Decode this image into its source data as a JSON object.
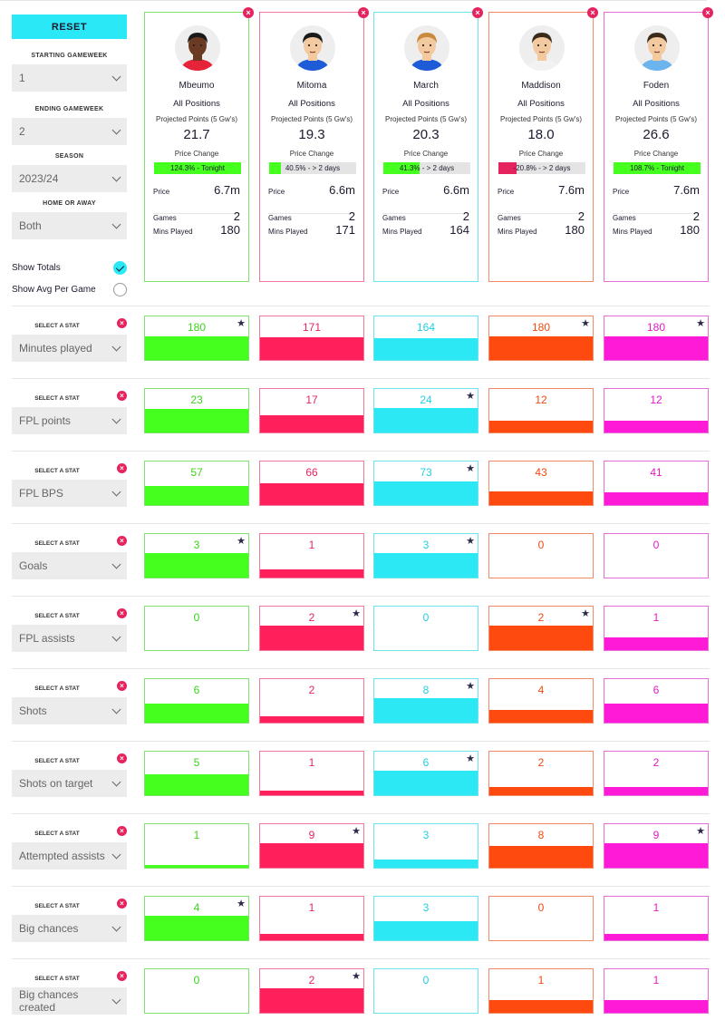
{
  "sidebar": {
    "reset_label": "RESET",
    "starting_label": "STARTING GAMEWEEK",
    "starting_value": "1",
    "ending_label": "ENDING GAMEWEEK",
    "ending_value": "2",
    "season_label": "SEASON",
    "season_value": "2023/24",
    "home_away_label": "HOME OR AWAY",
    "home_away_value": "Both",
    "show_totals": "Show Totals",
    "show_totals_on": true,
    "show_avg": "Show Avg Per Game",
    "show_avg_on": false
  },
  "labels": {
    "projected": "Projected Points (5 Gw's)",
    "price_change": "Price Change",
    "price": "Price",
    "games": "Games",
    "mins": "Mins Played",
    "select_stat": "SELECT A STAT",
    "close": "×",
    "star": "★"
  },
  "colors": [
    "#45ff1e",
    "#ff1f5a",
    "#2ce8f5",
    "#ff4a0f",
    "#ff1ad8"
  ],
  "border_colors": [
    "#7de36a",
    "#f07a9b",
    "#6de3ec",
    "#f58b66",
    "#e86fd6"
  ],
  "text_colors": [
    "#3ad41a",
    "#e5245f",
    "#22cfe0",
    "#ee4a10",
    "#e21ac8"
  ],
  "players": [
    {
      "name": "Mbeumo",
      "position": "All Positions",
      "projected": "21.7",
      "price_change_text": "124.3% - Tonight",
      "price_change_pct": 100,
      "price_bar_color": "#45ff1e",
      "price": "6.7m",
      "games": "2",
      "mins": "180",
      "skin": "#6b3a22",
      "hair": "#1a1a1a",
      "shirt": "#e5243a"
    },
    {
      "name": "Mitoma",
      "position": "All Positions",
      "projected": "19.3",
      "price_change_text": "40.5% - > 2 days",
      "price_change_pct": 14,
      "price_bar_color": "#45ff1e",
      "price": "6.6m",
      "games": "2",
      "mins": "171",
      "skin": "#f3c9a0",
      "hair": "#1a1a1a",
      "shirt": "#1e5bd6"
    },
    {
      "name": "March",
      "position": "All Positions",
      "projected": "20.3",
      "price_change_text": "41.3% - > 2 days",
      "price_change_pct": 42,
      "price_bar_color": "#45ff1e",
      "price": "6.6m",
      "games": "2",
      "mins": "164",
      "skin": "#f3c9a0",
      "hair": "#c98a40",
      "shirt": "#1e5bd6"
    },
    {
      "name": "Maddison",
      "position": "All Positions",
      "projected": "18.0",
      "price_change_text": "-20.8% - > 2 days",
      "price_change_pct": 21,
      "price_bar_color": "#e5245f",
      "price": "7.6m",
      "games": "2",
      "mins": "180",
      "skin": "#f3c9a0",
      "hair": "#3a2a1a",
      "shirt": "#f2f2f2"
    },
    {
      "name": "Foden",
      "position": "All Positions",
      "projected": "26.6",
      "price_change_text": "108.7% - Tonight",
      "price_change_pct": 100,
      "price_bar_color": "#45ff1e",
      "price": "7.6m",
      "games": "2",
      "mins": "180",
      "skin": "#f3c9a0",
      "hair": "#3a2a1a",
      "shirt": "#6cb4ee"
    }
  ],
  "stats": [
    {
      "name": "Minutes played",
      "values": [
        "180",
        "171",
        "164",
        "180",
        "180"
      ],
      "fills": [
        0.55,
        0.52,
        0.5,
        0.55,
        0.55
      ],
      "stars": [
        true,
        false,
        false,
        true,
        true
      ]
    },
    {
      "name": "FPL points",
      "values": [
        "23",
        "17",
        "24",
        "12",
        "12"
      ],
      "fills": [
        0.55,
        0.4,
        0.57,
        0.27,
        0.27
      ],
      "stars": [
        false,
        false,
        true,
        false,
        false
      ]
    },
    {
      "name": "FPL BPS",
      "values": [
        "57",
        "66",
        "73",
        "43",
        "41"
      ],
      "fills": [
        0.43,
        0.5,
        0.55,
        0.32,
        0.3
      ],
      "stars": [
        false,
        false,
        true,
        false,
        false
      ]
    },
    {
      "name": "Goals",
      "values": [
        "3",
        "1",
        "3",
        "0",
        "0"
      ],
      "fills": [
        0.57,
        0.19,
        0.57,
        0,
        0
      ],
      "stars": [
        true,
        false,
        true,
        false,
        false
      ]
    },
    {
      "name": "FPL assists",
      "values": [
        "0",
        "2",
        "0",
        "2",
        "1"
      ],
      "fills": [
        0,
        0.57,
        0,
        0.57,
        0.29
      ],
      "stars": [
        false,
        true,
        false,
        true,
        false
      ]
    },
    {
      "name": "Shots",
      "values": [
        "6",
        "2",
        "8",
        "4",
        "6"
      ],
      "fills": [
        0.43,
        0.14,
        0.57,
        0.29,
        0.43
      ],
      "stars": [
        false,
        false,
        true,
        false,
        false
      ]
    },
    {
      "name": "Shots on target",
      "values": [
        "5",
        "1",
        "6",
        "2",
        "2"
      ],
      "fills": [
        0.48,
        0.1,
        0.57,
        0.19,
        0.19
      ],
      "stars": [
        false,
        false,
        true,
        false,
        false
      ]
    },
    {
      "name": "Attempted assists",
      "values": [
        "1",
        "9",
        "3",
        "8",
        "9"
      ],
      "fills": [
        0.06,
        0.57,
        0.19,
        0.5,
        0.57
      ],
      "stars": [
        false,
        true,
        false,
        false,
        true
      ]
    },
    {
      "name": "Big chances",
      "values": [
        "4",
        "1",
        "3",
        "0",
        "1"
      ],
      "fills": [
        0.57,
        0.14,
        0.43,
        0,
        0.14
      ],
      "stars": [
        true,
        false,
        false,
        false,
        false
      ]
    },
    {
      "name": "Big chances created",
      "values": [
        "0",
        "2",
        "0",
        "1",
        "1"
      ],
      "fills": [
        0,
        0.57,
        0,
        0.29,
        0.29
      ],
      "stars": [
        false,
        true,
        false,
        false,
        false
      ]
    }
  ]
}
